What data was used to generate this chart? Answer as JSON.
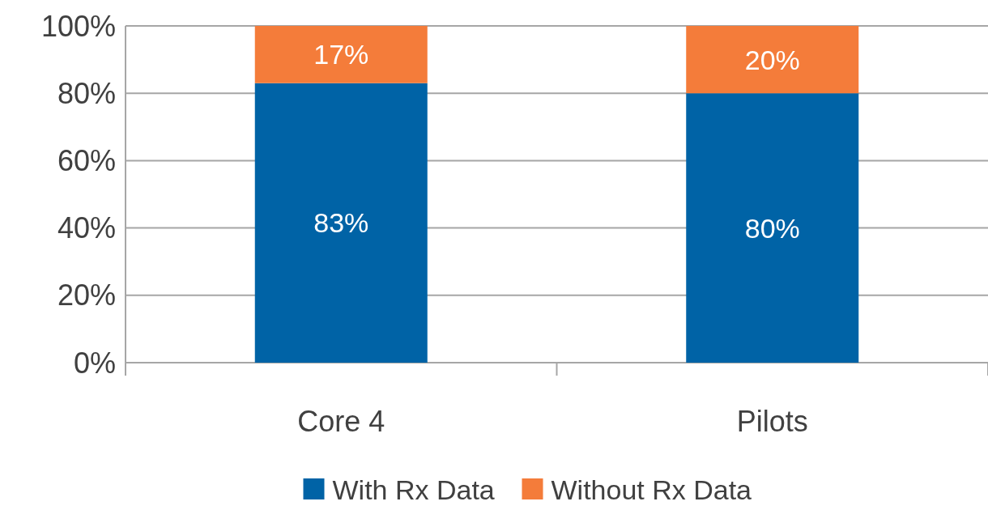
{
  "chart_data": {
    "type": "bar",
    "stacked": true,
    "categories": [
      "Core 4",
      "Pilots"
    ],
    "series": [
      {
        "name": "With Rx Data",
        "color": "#0063a6",
        "values": [
          83,
          80
        ],
        "value_labels": [
          "83%",
          "80%"
        ]
      },
      {
        "name": "Without Rx Data",
        "color": "#f47c3a",
        "values": [
          17,
          20
        ],
        "value_labels": [
          "17%",
          "20%"
        ]
      }
    ],
    "ylim": [
      0,
      100
    ],
    "yticks": [
      {
        "value": 0,
        "label": "0%"
      },
      {
        "value": 20,
        "label": "20%"
      },
      {
        "value": 40,
        "label": "40%"
      },
      {
        "value": 60,
        "label": "60%"
      },
      {
        "value": 80,
        "label": "80%"
      },
      {
        "value": 100,
        "label": "100%"
      }
    ],
    "grid": "y",
    "legend": "bottom"
  }
}
